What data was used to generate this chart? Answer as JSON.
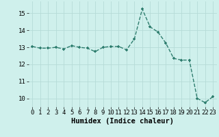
{
  "x": [
    0,
    1,
    2,
    3,
    4,
    5,
    6,
    7,
    8,
    9,
    10,
    11,
    12,
    13,
    14,
    15,
    16,
    17,
    18,
    19,
    20,
    21,
    22,
    23
  ],
  "y": [
    13.05,
    12.95,
    12.95,
    13.0,
    12.9,
    13.1,
    13.0,
    12.95,
    12.75,
    13.0,
    13.05,
    13.05,
    12.85,
    13.5,
    15.25,
    14.2,
    13.9,
    13.25,
    12.35,
    12.25,
    12.25,
    10.0,
    9.75,
    10.1
  ],
  "line_color": "#2e7d6e",
  "marker": "+",
  "marker_size": 3,
  "marker_lw": 1.2,
  "line_width": 1.0,
  "bg_color": "#cff0ec",
  "grid_color": "#b5dbd7",
  "xlabel": "Humidex (Indice chaleur)",
  "xlim": [
    -0.5,
    23.5
  ],
  "ylim": [
    9.5,
    15.7
  ],
  "yticks": [
    10,
    11,
    12,
    13,
    14,
    15
  ],
  "xlabel_fontsize": 7.5,
  "tick_fontsize": 6.5
}
